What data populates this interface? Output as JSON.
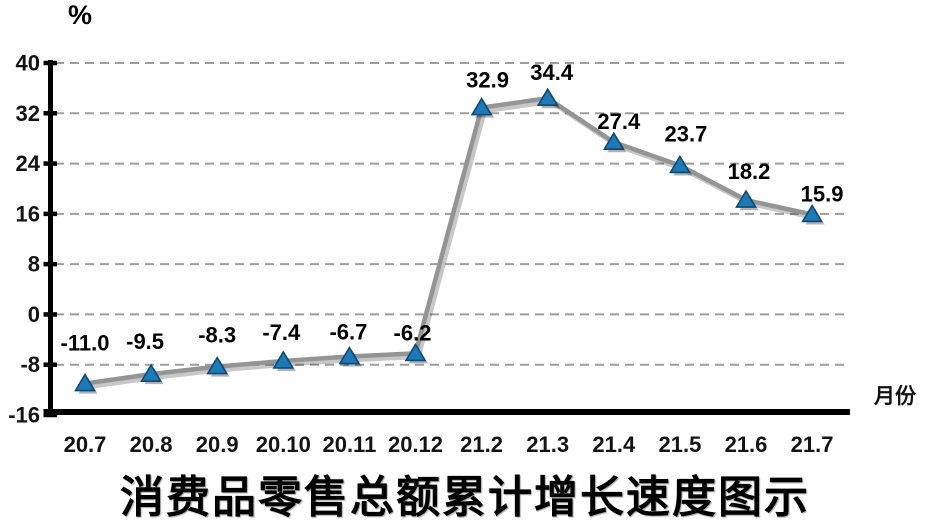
{
  "chart": {
    "y_unit_label": "%",
    "x_axis_label": "月份",
    "title": "消费品零售总额累计增长速度图示"
  },
  "chart_data": {
    "type": "line",
    "title": "消费品零售总额累计增长速度图示",
    "xlabel": "月份",
    "ylabel": "%",
    "categories": [
      "20.7",
      "20.8",
      "20.9",
      "20.10",
      "20.11",
      "20.12",
      "21.2",
      "21.3",
      "21.4",
      "21.5",
      "21.6",
      "21.7"
    ],
    "values": [
      -11.0,
      -9.5,
      -8.3,
      -7.4,
      -6.7,
      -6.2,
      32.9,
      34.4,
      27.4,
      23.7,
      18.2,
      15.9
    ],
    "point_labels": [
      "-11.0",
      "-9.5",
      "-8.3",
      "-7.4",
      "-6.7",
      "-6.2",
      "32.9",
      "34.4",
      "27.4",
      "23.7",
      "18.2",
      "15.9"
    ],
    "ylim": [
      -16,
      40
    ],
    "yticks": [
      40,
      32,
      24,
      16,
      8,
      0,
      -8,
      -16
    ],
    "grid": "horizontal-dashed",
    "legend_position": "none",
    "marker": "triangle-up",
    "label_dx": [
      0,
      -6,
      0,
      -2,
      -1,
      -3,
      6,
      4,
      5,
      6,
      3,
      10
    ],
    "label_dy": [
      -33,
      -25,
      -24,
      -21,
      -17,
      -13,
      -20,
      -18,
      -13,
      -24,
      -21,
      -13
    ],
    "colors": {
      "line": "#949494",
      "line_shadow": "rgba(0,0,0,0.22)",
      "marker_fill": "#1b7ab8",
      "marker_stroke": "#0d4a78",
      "marker_shadow": "rgba(0,0,0,0.30)",
      "grid": "#9e9e9e",
      "axis": "#000000",
      "tick_text": "#141414"
    }
  }
}
